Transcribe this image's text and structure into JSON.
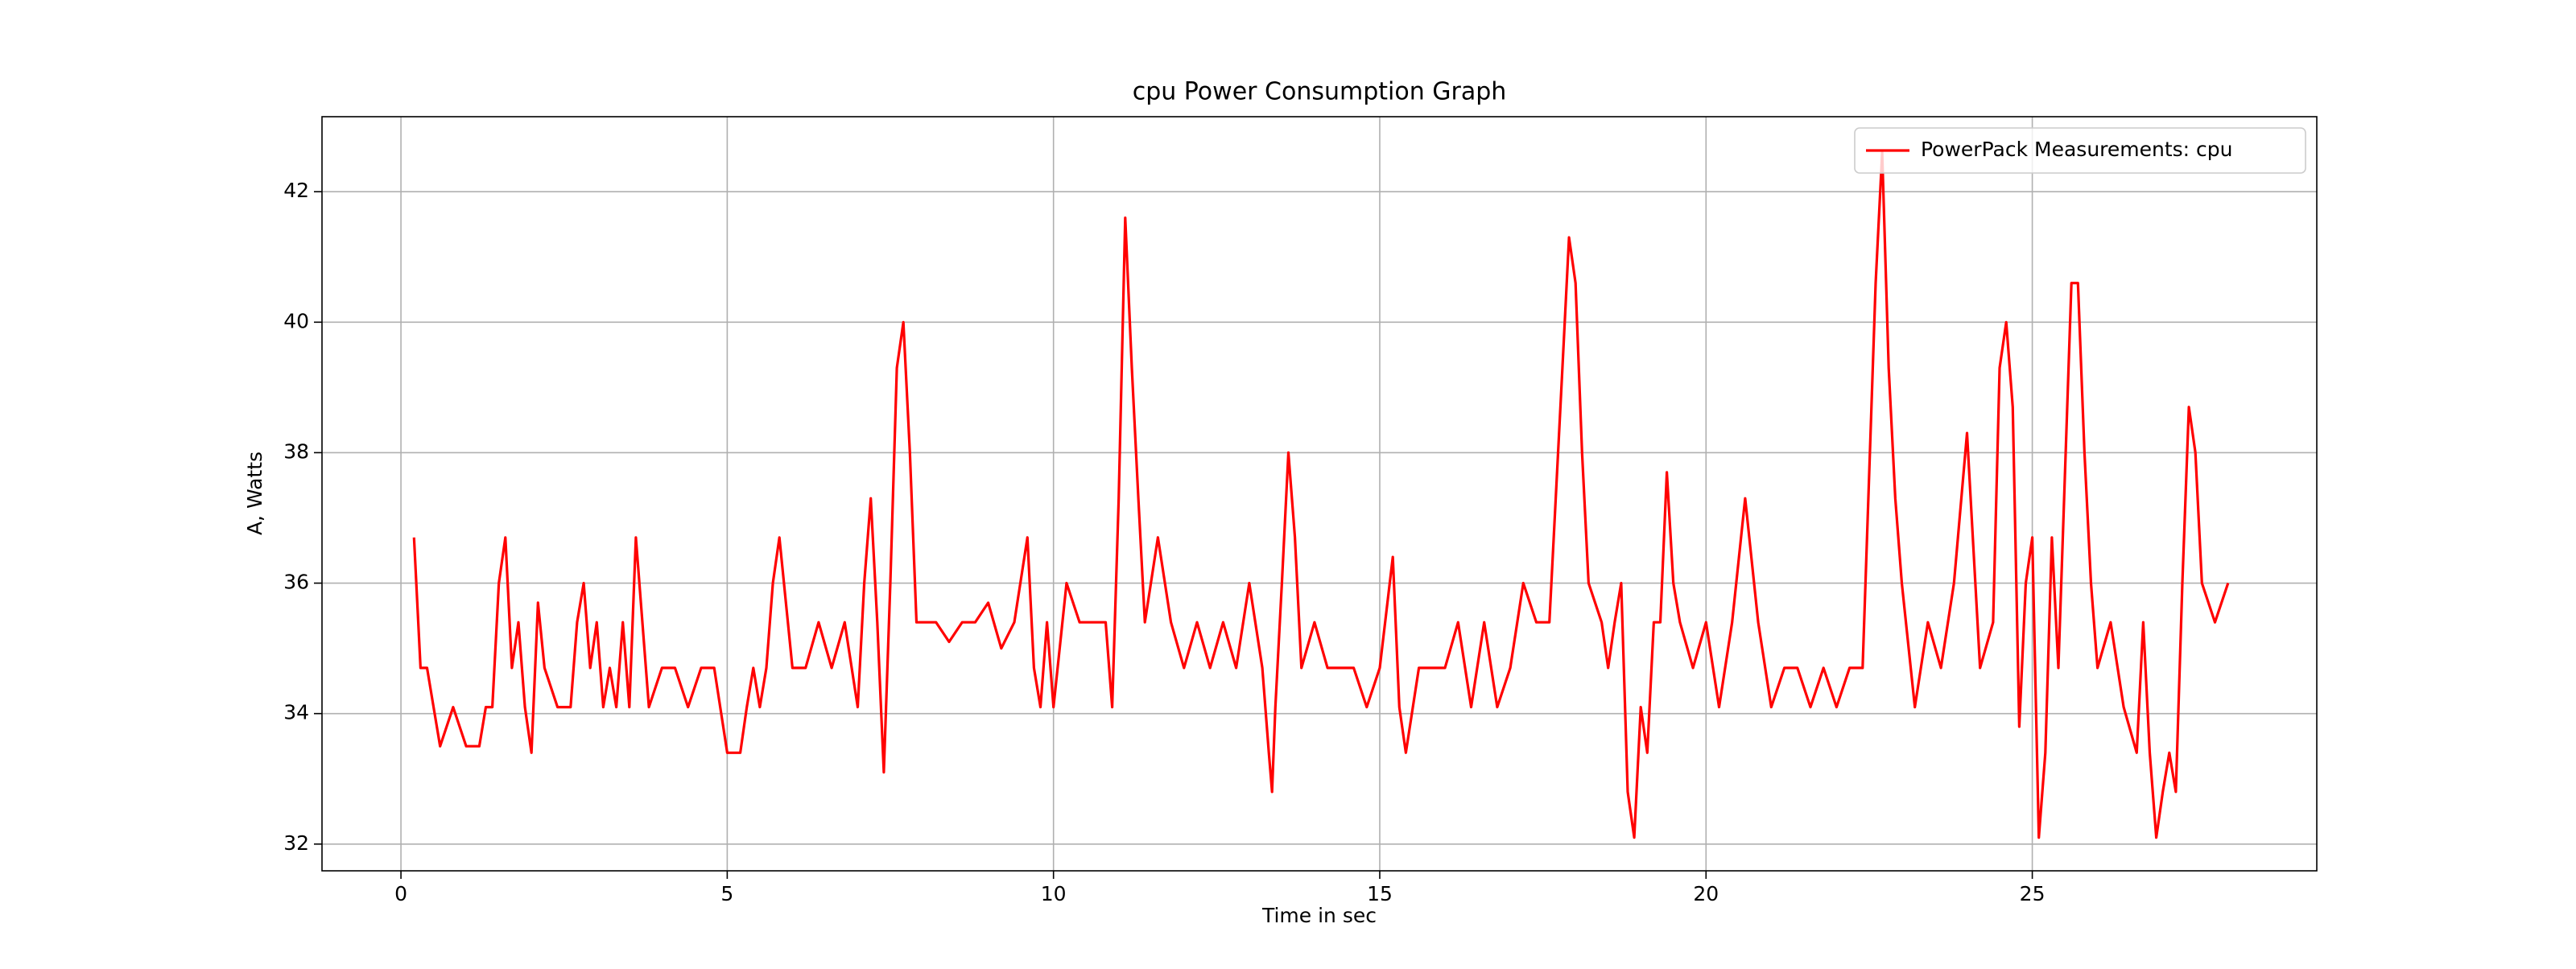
{
  "chart_data": {
    "type": "line",
    "title": "cpu Power Consumption Graph",
    "xlabel": "Time in sec",
    "ylabel": "A, Watts",
    "x": [
      0.2,
      0.3,
      0.4,
      0.5,
      0.6,
      0.8,
      1.0,
      1.2,
      1.3,
      1.4,
      1.5,
      1.6,
      1.7,
      1.8,
      1.9,
      2.0,
      2.1,
      2.2,
      2.4,
      2.6,
      2.7,
      2.8,
      2.9,
      3.0,
      3.1,
      3.2,
      3.3,
      3.4,
      3.5,
      3.6,
      3.7,
      3.8,
      4.0,
      4.2,
      4.4,
      4.6,
      4.8,
      5.0,
      5.2,
      5.3,
      5.4,
      5.5,
      5.6,
      5.7,
      5.8,
      6.0,
      6.2,
      6.4,
      6.6,
      6.8,
      7.0,
      7.1,
      7.2,
      7.3,
      7.4,
      7.5,
      7.6,
      7.7,
      7.8,
      7.9,
      8.0,
      8.2,
      8.4,
      8.6,
      8.8,
      9.0,
      9.2,
      9.4,
      9.6,
      9.7,
      9.8,
      9.9,
      10.0,
      10.2,
      10.4,
      10.6,
      10.8,
      10.9,
      11.0,
      11.1,
      11.2,
      11.3,
      11.4,
      11.6,
      11.8,
      12.0,
      12.2,
      12.4,
      12.6,
      12.8,
      13.0,
      13.2,
      13.3,
      13.35,
      13.4,
      13.5,
      13.6,
      13.7,
      13.8,
      14.0,
      14.2,
      14.4,
      14.6,
      14.8,
      15.0,
      15.2,
      15.3,
      15.4,
      15.6,
      16.0,
      16.2,
      16.4,
      16.6,
      16.8,
      17.0,
      17.2,
      17.4,
      17.6,
      17.8,
      17.9,
      18.0,
      18.1,
      18.2,
      18.4,
      18.5,
      18.6,
      18.7,
      18.8,
      18.9,
      19.0,
      19.1,
      19.2,
      19.3,
      19.4,
      19.5,
      19.6,
      19.8,
      20.0,
      20.2,
      20.4,
      20.6,
      20.8,
      21.0,
      21.2,
      21.4,
      21.6,
      21.8,
      22.0,
      22.2,
      22.4,
      22.6,
      22.7,
      22.8,
      22.9,
      23.0,
      23.2,
      23.4,
      23.6,
      23.8,
      24.0,
      24.2,
      24.4,
      24.5,
      24.6,
      24.7,
      24.8,
      24.9,
      25.0,
      25.1,
      25.2,
      25.3,
      25.4,
      25.6,
      25.7,
      25.8,
      25.9,
      26.0,
      26.2,
      26.4,
      26.6,
      26.7,
      26.8,
      26.9,
      27.0,
      27.1,
      27.2,
      27.3,
      27.4,
      27.5,
      27.6,
      27.8,
      28.0
    ],
    "series": [
      {
        "name": "PowerPack Measurements: cpu",
        "color": "#ff0000",
        "values": [
          36.7,
          34.7,
          34.7,
          34.1,
          33.5,
          34.1,
          33.5,
          33.5,
          34.1,
          34.1,
          36.0,
          36.7,
          34.7,
          35.4,
          34.1,
          33.4,
          35.7,
          34.7,
          34.1,
          34.1,
          35.4,
          36.0,
          34.7,
          35.4,
          34.1,
          34.7,
          34.1,
          35.4,
          34.1,
          36.7,
          35.4,
          34.1,
          34.7,
          34.7,
          34.1,
          34.7,
          34.7,
          33.4,
          33.4,
          34.1,
          34.7,
          34.1,
          34.7,
          36.0,
          36.7,
          34.7,
          34.7,
          35.4,
          34.7,
          35.4,
          34.1,
          36.0,
          37.3,
          35.4,
          33.1,
          36.0,
          39.3,
          40.0,
          38.0,
          35.4,
          35.4,
          35.4,
          35.1,
          35.4,
          35.4,
          35.7,
          35.0,
          35.4,
          36.7,
          34.7,
          34.1,
          35.4,
          34.1,
          36.0,
          35.4,
          35.4,
          35.4,
          34.1,
          37.3,
          41.6,
          39.3,
          37.3,
          35.4,
          36.7,
          35.4,
          34.7,
          35.4,
          34.7,
          35.4,
          34.7,
          36.0,
          34.7,
          33.4,
          32.8,
          34.1,
          36.0,
          38.0,
          36.7,
          34.7,
          35.4,
          34.7,
          34.7,
          34.7,
          34.1,
          34.7,
          36.4,
          34.1,
          33.4,
          34.7,
          34.7,
          35.4,
          34.1,
          35.4,
          34.1,
          34.7,
          36.0,
          35.4,
          35.4,
          39.3,
          41.3,
          40.6,
          38.0,
          36.0,
          35.4,
          34.7,
          35.4,
          36.0,
          32.8,
          32.1,
          34.1,
          33.4,
          35.4,
          35.4,
          37.7,
          36.0,
          35.4,
          34.7,
          35.4,
          34.1,
          35.4,
          37.3,
          35.4,
          34.1,
          34.7,
          34.7,
          34.1,
          34.7,
          34.1,
          34.7,
          34.7,
          40.6,
          42.6,
          39.3,
          37.3,
          36.0,
          34.1,
          35.4,
          34.7,
          36.0,
          38.3,
          34.7,
          35.4,
          39.3,
          40.0,
          38.7,
          33.8,
          36.0,
          36.7,
          32.1,
          33.4,
          36.7,
          34.7,
          40.6,
          40.6,
          38.0,
          36.0,
          34.7,
          35.4,
          34.1,
          33.4,
          35.4,
          33.4,
          32.1,
          32.8,
          33.4,
          32.8,
          36.0,
          38.7,
          38.0,
          36.0,
          35.4,
          36.0
        ]
      }
    ],
    "xlim": [
      -1.21,
      29.36
    ],
    "xticks": [
      0,
      5,
      10,
      15,
      20,
      25
    ],
    "ylim": [
      31.59,
      43.15
    ],
    "yticks": [
      32,
      34,
      36,
      38,
      40,
      42
    ],
    "grid": true,
    "legend": "upper right"
  }
}
